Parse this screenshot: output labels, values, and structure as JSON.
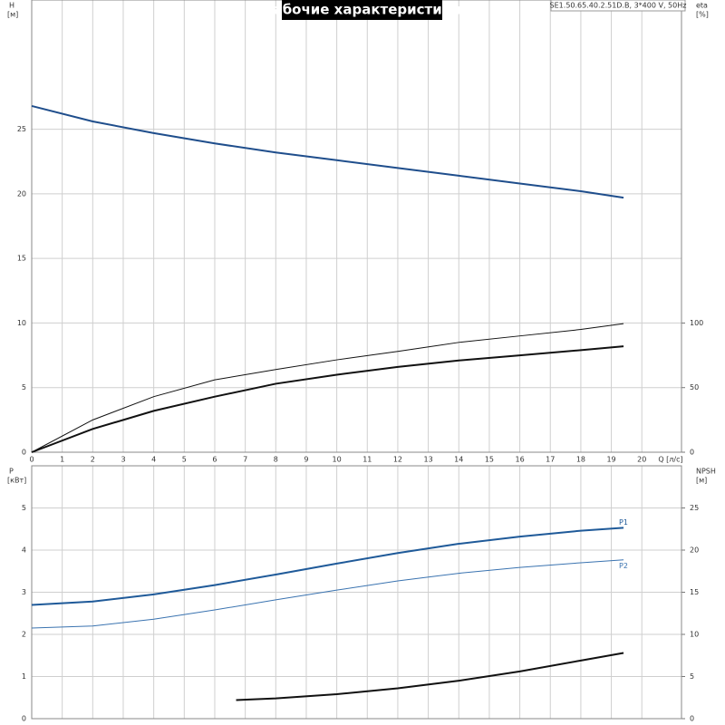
{
  "chart_data": [
    {
      "type": "line",
      "title": "Рабочие характеристики",
      "annotation": "SE1.50.65.40.2.51D.B, 3*400 V, 50Hz",
      "ylabel": "H",
      "yunit": "[м]",
      "y2label": "eta",
      "y2unit": "[%]",
      "xlabel": "Q [л/с]",
      "xlim": [
        0,
        21.3
      ],
      "xticks": [
        0,
        1,
        2,
        3,
        4,
        5,
        6,
        7,
        8,
        9,
        10,
        11,
        12,
        13,
        14,
        15,
        16,
        17,
        18,
        19,
        20
      ],
      "ylim": [
        0,
        35
      ],
      "yticks": [
        0,
        5,
        10,
        15,
        20,
        25
      ],
      "y2lim": [
        0,
        350
      ],
      "y2ticks": [
        0,
        50,
        100
      ],
      "grid": true,
      "xticklabels": true,
      "series": [
        {
          "color": "#1f4e8c",
          "linewidth": 2,
          "x": [
            0,
            2,
            4,
            6,
            8,
            10,
            12,
            14,
            16,
            18,
            19.4
          ],
          "values": [
            26.8,
            25.6,
            24.7,
            23.9,
            23.2,
            22.6,
            22.0,
            21.4,
            20.8,
            20.2,
            19.7
          ]
        },
        {
          "color": "#111111",
          "linewidth": 1,
          "axis": "y2",
          "x": [
            0,
            2,
            4,
            6,
            8,
            10,
            12,
            14,
            16,
            18,
            19.4
          ],
          "values": [
            0,
            25,
            43,
            56,
            64,
            71.5,
            78,
            85,
            90,
            95,
            99.5
          ]
        },
        {
          "color": "#111111",
          "linewidth": 2,
          "axis": "y2",
          "x": [
            0,
            2,
            4,
            6,
            8,
            10,
            12,
            14,
            16,
            18,
            19.4
          ],
          "values": [
            0,
            18,
            32,
            43,
            53,
            60,
            66,
            71,
            75,
            79,
            82
          ]
        }
      ]
    },
    {
      "type": "line",
      "ylabel": "P",
      "yunit": "[кВт]",
      "y2label": "NPSH",
      "y2unit": "[м]",
      "xlim": [
        0,
        21.3
      ],
      "xticks": [
        0,
        1,
        2,
        3,
        4,
        5,
        6,
        7,
        8,
        9,
        10,
        11,
        12,
        13,
        14,
        15,
        16,
        17,
        18,
        19,
        20
      ],
      "ylim": [
        0,
        6
      ],
      "yticks": [
        0,
        1,
        2,
        3,
        4,
        5
      ],
      "y2lim": [
        0,
        30
      ],
      "y2ticks": [
        0,
        5,
        10,
        15,
        20,
        25
      ],
      "grid": true,
      "xticklabels": false,
      "series": [
        {
          "name": "P1",
          "color": "#1f5a99",
          "linewidth": 2,
          "x": [
            0,
            2,
            4,
            6,
            8,
            10,
            12,
            14,
            16,
            18,
            19.4
          ],
          "values": [
            2.7,
            2.78,
            2.95,
            3.17,
            3.42,
            3.68,
            3.93,
            4.15,
            4.32,
            4.46,
            4.53
          ]
        },
        {
          "name": "P2",
          "color": "#3a73b0",
          "linewidth": 1,
          "x": [
            0,
            2,
            4,
            6,
            8,
            10,
            12,
            14,
            16,
            18,
            19.4
          ],
          "values": [
            2.15,
            2.2,
            2.36,
            2.58,
            2.82,
            3.05,
            3.27,
            3.45,
            3.59,
            3.7,
            3.77
          ]
        },
        {
          "color": "#111111",
          "linewidth": 2,
          "axis": "y2",
          "x": [
            6.7,
            8,
            10,
            12,
            14,
            16,
            18,
            19.4
          ],
          "values": [
            2.2,
            2.4,
            2.9,
            3.6,
            4.5,
            5.6,
            6.9,
            7.8
          ]
        }
      ]
    }
  ]
}
